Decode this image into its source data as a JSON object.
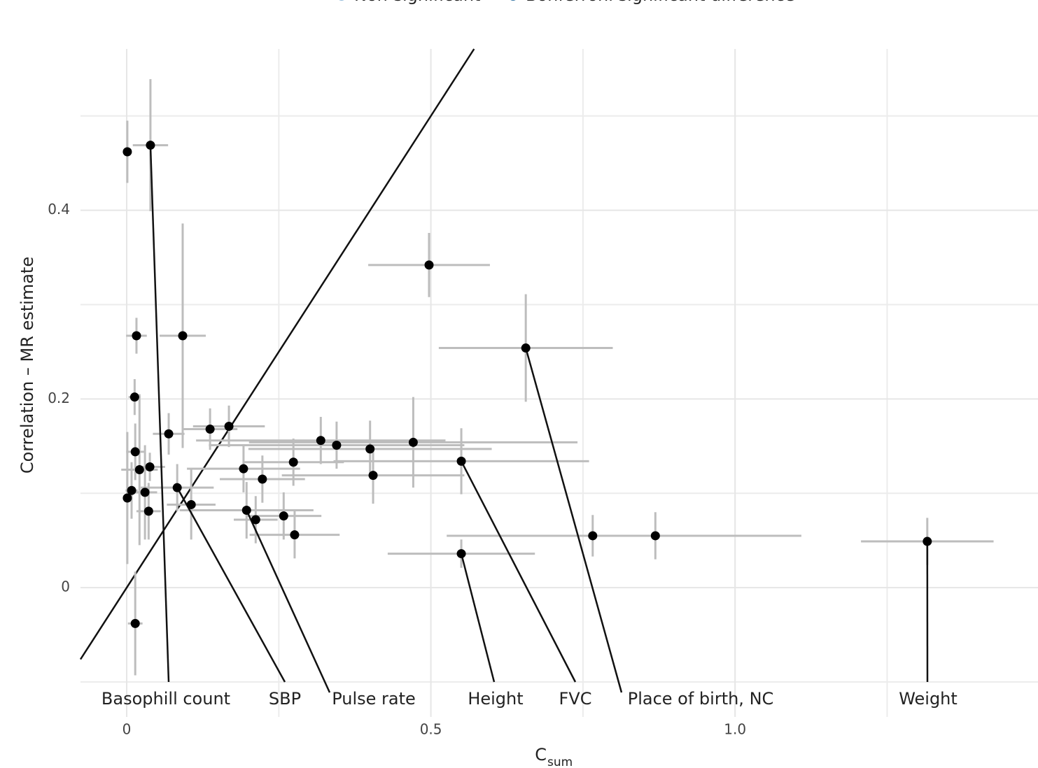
{
  "chart_data": {
    "type": "scatter",
    "legend": [
      {
        "name": "Non-significant",
        "color": "#8fb8d8"
      },
      {
        "name": "Bonferroni significant difference",
        "color": "#2f6f9f"
      }
    ],
    "x_label": {
      "text": "C",
      "subscript": "sum"
    },
    "y_label": "Correlation – MR estimate",
    "xlim": [
      -0.076,
      1.498
    ],
    "ylim": [
      -0.1,
      0.571
    ],
    "xticks": [
      0,
      0.5,
      {
        "value": 1,
        "label": "1.0"
      }
    ],
    "yticks": [
      0,
      0.2,
      0.4
    ],
    "x_minor_grid": [
      0.25,
      0.75,
      1.25
    ],
    "y_minor_grid": [
      -0.1,
      0.1,
      0.3,
      0.5
    ],
    "grid": true,
    "identity_line": true,
    "series": [
      {
        "color": "#000000",
        "error_color": "#bdbdbd",
        "x": [
          0.001,
          0.039,
          0.016,
          0.092,
          0.013,
          0.069,
          0.137,
          0.168,
          0.014,
          0.021,
          0.038,
          0.03,
          0.008,
          0.001,
          0.036,
          0.083,
          0.106,
          0.014,
          0.192,
          0.223,
          0.274,
          0.197,
          0.212,
          0.258,
          0.276,
          0.319,
          0.345,
          0.4,
          0.405,
          0.471,
          0.55,
          0.497,
          0.656,
          0.55,
          0.766,
          0.869,
          1.316
        ],
        "values": [
          0.462,
          0.469,
          0.267,
          0.267,
          0.202,
          0.163,
          0.168,
          0.171,
          0.144,
          0.125,
          0.128,
          0.101,
          0.103,
          0.095,
          0.081,
          0.106,
          0.088,
          -0.038,
          0.126,
          0.115,
          0.133,
          0.082,
          0.072,
          0.076,
          0.056,
          0.156,
          0.151,
          0.147,
          0.119,
          0.154,
          0.134,
          0.342,
          0.254,
          0.036,
          0.055,
          0.055,
          0.049
        ],
        "xerr": [
          0.003,
          0.029,
          0.017,
          0.038,
          0.01,
          0.026,
          0.045,
          0.059,
          0.015,
          0.03,
          0.025,
          0.02,
          0.01,
          0.005,
          0.02,
          0.06,
          0.04,
          0.012,
          0.093,
          0.07,
          0.083,
          0.11,
          0.036,
          0.062,
          0.074,
          0.205,
          0.21,
          0.2,
          0.15,
          0.27,
          0.21,
          0.1,
          0.143,
          0.121,
          0.24,
          0.24,
          0.109
        ],
        "yerr": [
          0.033,
          0.07,
          0.019,
          0.119,
          0.019,
          0.022,
          0.022,
          0.022,
          0.03,
          0.08,
          0.015,
          0.05,
          0.03,
          0.07,
          0.03,
          0.025,
          0.037,
          0.055,
          0.025,
          0.025,
          0.025,
          0.03,
          0.025,
          0.025,
          0.025,
          0.025,
          0.025,
          0.03,
          0.03,
          0.048,
          0.035,
          0.034,
          0.057,
          0.015,
          0.022,
          0.025,
          0.025
        ],
        "labels": [
          null,
          "Basophill count",
          null,
          null,
          null,
          null,
          null,
          null,
          null,
          null,
          null,
          null,
          null,
          null,
          null,
          "SBP",
          null,
          null,
          null,
          null,
          null,
          "Pulse rate",
          null,
          null,
          null,
          null,
          null,
          null,
          null,
          null,
          "FVC",
          null,
          "Place of birth, NC",
          "Height",
          null,
          null,
          "Weight"
        ]
      }
    ]
  }
}
